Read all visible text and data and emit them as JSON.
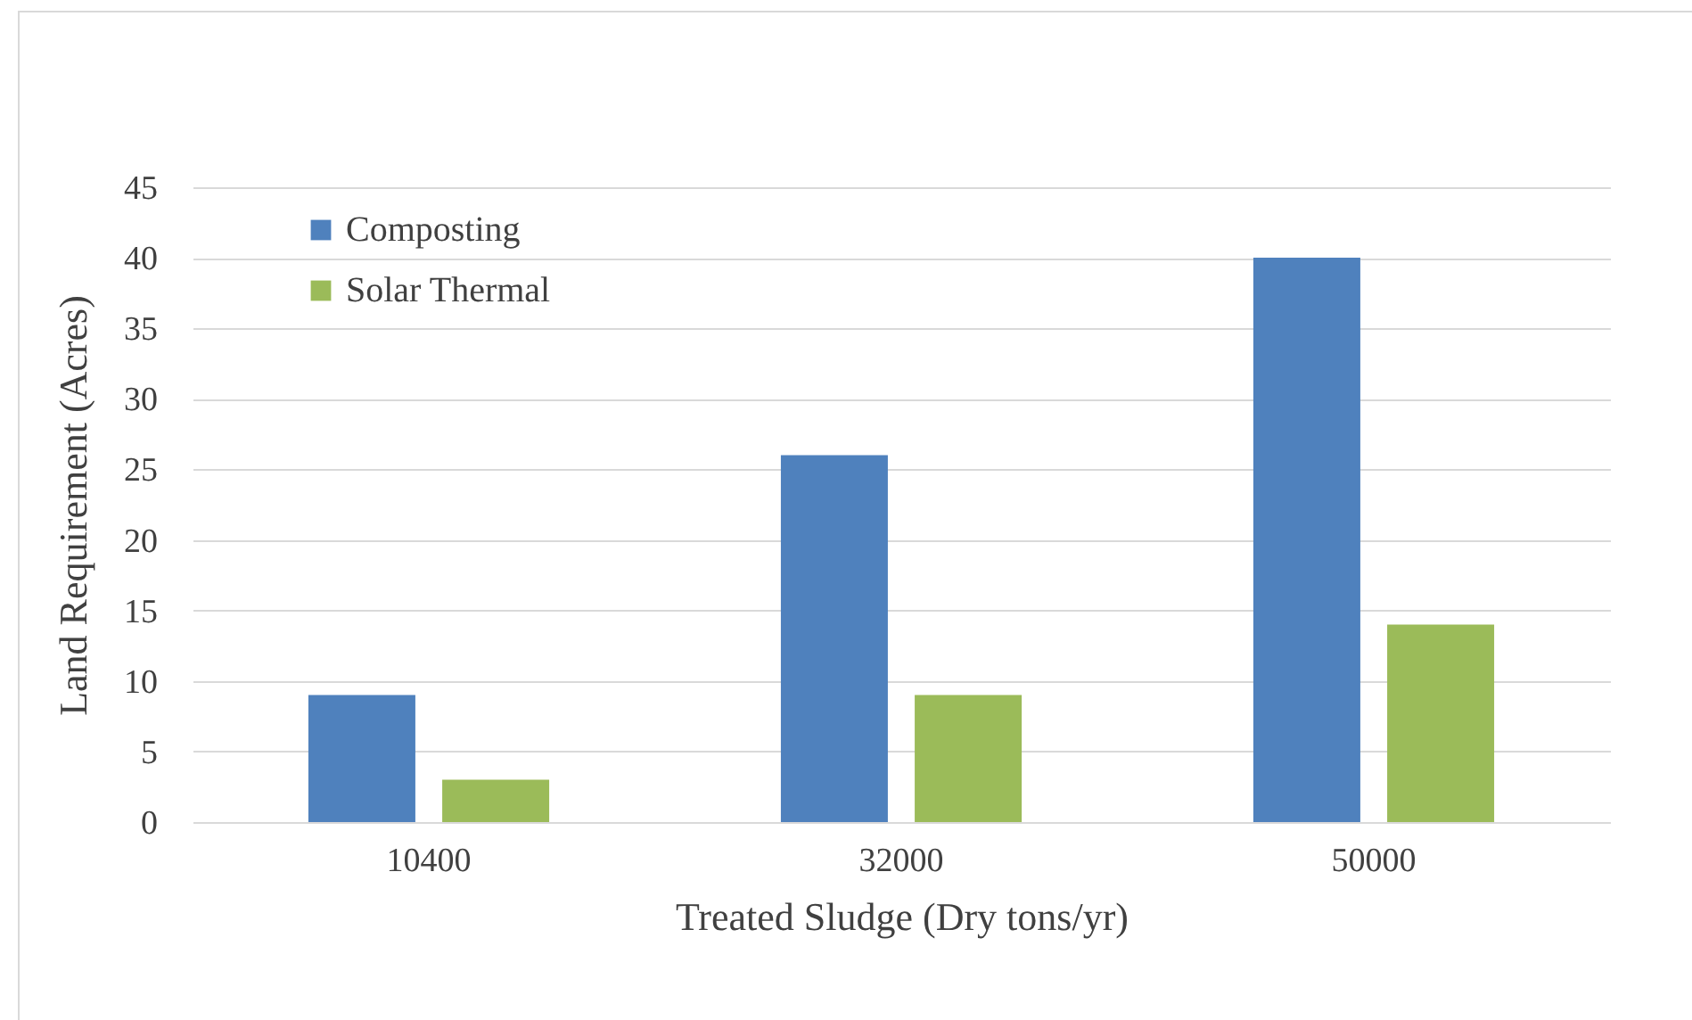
{
  "chart_data": {
    "type": "bar",
    "xlabel": "Treated Sludge (Dry tons/yr)",
    "ylabel": "Land Requirement (Acres)",
    "categories": [
      "10400",
      "32000",
      "50000"
    ],
    "series": [
      {
        "name": "Composting",
        "color": "#4f81bd",
        "values": [
          9,
          26,
          40
        ]
      },
      {
        "name": "Solar Thermal",
        "color": "#9bbb59",
        "values": [
          3,
          9,
          14
        ]
      }
    ],
    "ylim": [
      0,
      45
    ],
    "yticks": [
      0,
      5,
      10,
      15,
      20,
      25,
      30,
      35,
      40,
      45
    ],
    "grid": "y",
    "legend": "top left"
  }
}
